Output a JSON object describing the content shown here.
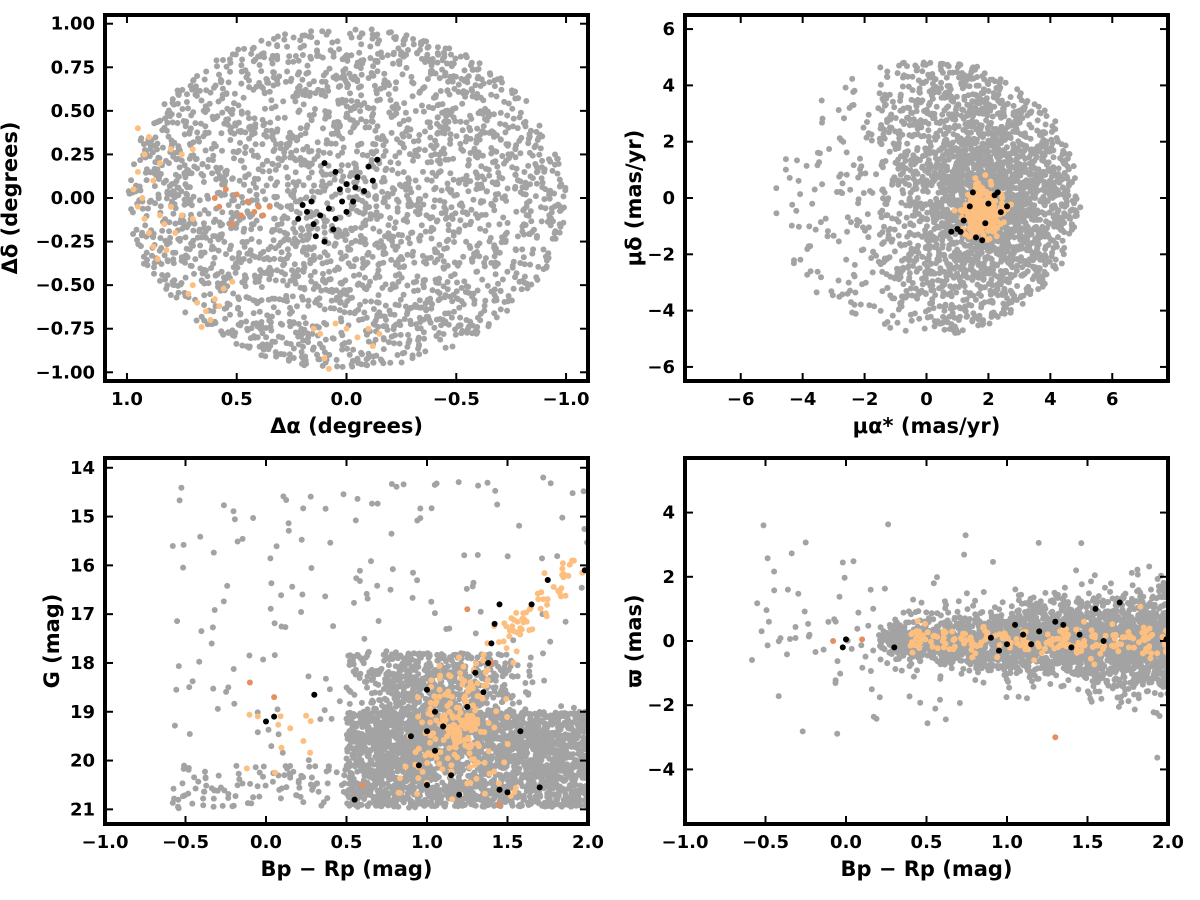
{
  "colors": {
    "field": "#a3a3a3",
    "member_light": "#fdbf7f",
    "member_dark": "#e58f5f",
    "core": "#000000"
  },
  "chart_data": [
    {
      "type": "scatter",
      "panel": "sky-positions",
      "xlabel": "Δα (degrees)",
      "ylabel": "Δδ (degrees)",
      "xlim": [
        1.1,
        -1.1
      ],
      "ylim": [
        -1.05,
        1.05
      ],
      "x_reversed": true,
      "xticks": [
        1.0,
        0.5,
        0.0,
        -0.5,
        -1.0
      ],
      "xtick_labels": [
        "1.0",
        "0.5",
        "0.0",
        "−0.5",
        "−1.0"
      ],
      "yticks": [
        1.0,
        0.75,
        0.5,
        0.25,
        0.0,
        -0.25,
        -0.5,
        -0.75,
        -1.0
      ],
      "ytick_labels": [
        "1.00",
        "0.75",
        "0.50",
        "0.25",
        "0.00",
        "−0.25",
        "−0.50",
        "−0.75",
        "−1.00"
      ],
      "grid": false,
      "series": [
        {
          "color": "#a3a3a3",
          "description": "field stars uniformly filling a circle of radius 1 degree"
        },
        {
          "color": "#fdbf7f",
          "points": [
            [
              0.95,
              0.4
            ],
            [
              0.9,
              0.35
            ],
            [
              0.92,
              0.25
            ],
            [
              0.95,
              0.15
            ],
            [
              0.97,
              0.05
            ],
            [
              0.95,
              -0.05
            ],
            [
              0.92,
              -0.12
            ],
            [
              0.9,
              -0.2
            ],
            [
              0.88,
              -0.28
            ],
            [
              0.86,
              -0.35
            ],
            [
              0.85,
              -0.1
            ],
            [
              0.83,
              -0.15
            ],
            [
              0.8,
              -0.05
            ],
            [
              0.75,
              -0.1
            ],
            [
              0.7,
              -0.12
            ],
            [
              0.88,
              0.1
            ],
            [
              0.85,
              0.2
            ],
            [
              0.8,
              0.28
            ],
            [
              0.75,
              0.25
            ],
            [
              0.7,
              0.28
            ],
            [
              0.93,
              0.0
            ],
            [
              0.78,
              -0.2
            ],
            [
              0.82,
              -0.3
            ],
            [
              0.72,
              -0.55
            ],
            [
              0.68,
              -0.6
            ],
            [
              0.64,
              -0.65
            ],
            [
              0.6,
              -0.58
            ],
            [
              0.56,
              -0.52
            ],
            [
              0.52,
              -0.48
            ],
            [
              0.62,
              -0.7
            ],
            [
              0.66,
              -0.74
            ],
            [
              0.7,
              -0.5
            ],
            [
              0.58,
              -0.62
            ],
            [
              0.05,
              -0.72
            ],
            [
              0.0,
              -0.75
            ],
            [
              -0.05,
              -0.8
            ],
            [
              -0.1,
              -0.75
            ],
            [
              -0.15,
              -0.78
            ],
            [
              0.12,
              -0.78
            ],
            [
              0.1,
              -0.92
            ],
            [
              0.08,
              -0.98
            ],
            [
              0.15,
              -0.75
            ],
            [
              -0.12,
              -0.85
            ]
          ]
        },
        {
          "color": "#e58f5f",
          "points": [
            [
              0.55,
              0.05
            ],
            [
              0.5,
              0.02
            ],
            [
              0.45,
              -0.02
            ],
            [
              0.42,
              -0.08
            ],
            [
              0.4,
              -0.05
            ],
            [
              0.38,
              -0.1
            ],
            [
              0.35,
              -0.05
            ],
            [
              0.48,
              -0.1
            ],
            [
              0.52,
              -0.15
            ],
            [
              0.58,
              -0.05
            ],
            [
              0.6,
              0.0
            ]
          ]
        },
        {
          "color": "#000000",
          "points": [
            [
              0.1,
              0.2
            ],
            [
              0.05,
              0.15
            ],
            [
              0.0,
              0.08
            ],
            [
              -0.05,
              0.12
            ],
            [
              -0.1,
              0.18
            ],
            [
              -0.12,
              0.1
            ],
            [
              0.02,
              -0.02
            ],
            [
              0.08,
              -0.06
            ],
            [
              0.12,
              -0.1
            ],
            [
              0.15,
              -0.15
            ],
            [
              0.18,
              -0.08
            ],
            [
              0.2,
              -0.04
            ],
            [
              0.05,
              -0.12
            ],
            [
              0.0,
              -0.08
            ],
            [
              -0.03,
              -0.02
            ],
            [
              -0.08,
              0.04
            ],
            [
              0.14,
              -0.22
            ],
            [
              0.1,
              -0.25
            ],
            [
              0.06,
              -0.18
            ],
            [
              0.22,
              -0.12
            ],
            [
              -0.04,
              0.06
            ],
            [
              -0.14,
              0.22
            ],
            [
              0.16,
              -0.02
            ],
            [
              0.03,
              0.05
            ]
          ]
        }
      ]
    },
    {
      "type": "scatter",
      "panel": "proper-motions",
      "xlabel": "μα* (mas/yr)",
      "ylabel": "μδ (mas/yr)",
      "xlim": [
        -7.8,
        7.8
      ],
      "ylim": [
        -6.5,
        6.5
      ],
      "xticks": [
        -6,
        -4,
        -2,
        0,
        2,
        4,
        6
      ],
      "xtick_labels": [
        "−6",
        "−4",
        "−2",
        "0",
        "2",
        "4",
        "6"
      ],
      "yticks": [
        6,
        4,
        2,
        0,
        -2,
        -4,
        -6
      ],
      "ytick_labels": [
        "6",
        "4",
        "2",
        "0",
        "−2",
        "−4",
        "−6"
      ],
      "grid": false,
      "series": [
        {
          "color": "#a3a3a3",
          "description": "field stars within a circle of radius 5 mas/yr centred on (0, 0), dense near (2, 0)"
        },
        {
          "color": "#fdbf7f",
          "description": "cluster members concentrated around (1.8, -0.5)"
        },
        {
          "color": "#000000",
          "points": [
            [
              1.0,
              -1.1
            ],
            [
              1.2,
              -0.8
            ],
            [
              1.4,
              -0.3
            ],
            [
              1.6,
              -1.4
            ],
            [
              1.8,
              -1.5
            ],
            [
              2.0,
              -0.2
            ],
            [
              2.2,
              0.1
            ],
            [
              2.4,
              -0.5
            ],
            [
              1.1,
              -1.2
            ],
            [
              1.5,
              0.2
            ],
            [
              2.6,
              -0.3
            ],
            [
              0.8,
              -1.2
            ],
            [
              1.9,
              -0.9
            ],
            [
              2.3,
              0.2
            ]
          ]
        }
      ]
    },
    {
      "type": "scatter",
      "panel": "colour-magnitude",
      "xlabel": "Bp − Rp (mag)",
      "ylabel": "G (mag)",
      "xlim": [
        -1.0,
        2.0
      ],
      "ylim": [
        21.3,
        13.8
      ],
      "y_reversed": true,
      "xticks": [
        -1.0,
        -0.5,
        0.0,
        0.5,
        1.0,
        1.5,
        2.0
      ],
      "xtick_labels": [
        "−1.0",
        "−0.5",
        "0.0",
        "0.5",
        "1.0",
        "1.5",
        "2.0"
      ],
      "yticks": [
        21,
        20,
        19,
        18,
        17,
        16,
        15,
        14
      ],
      "ytick_labels": [
        "21",
        "20",
        "19",
        "18",
        "17",
        "16",
        "15",
        "14"
      ],
      "grid": false,
      "series": [
        {
          "color": "#a3a3a3",
          "description": "field stars, dense band at G 19–21 for colour 0.5–2.0, sparse scatter elsewhere"
        },
        {
          "color": "#fdbf7f",
          "description": "members clustered near colour 1.2, G 19.1, with a sequence down to G 16"
        },
        {
          "color": "#e58f5f",
          "points": [
            [
              0.05,
              18.7
            ],
            [
              -0.1,
              18.4
            ],
            [
              1.25,
              16.9
            ],
            [
              1.45,
              20.9
            ],
            [
              1.4,
              18.0
            ],
            [
              0.6,
              20.5
            ]
          ]
        },
        {
          "color": "#000000",
          "points": [
            [
              0.55,
              20.8
            ],
            [
              0.95,
              20.1
            ],
            [
              1.0,
              20.5
            ],
            [
              1.05,
              19.8
            ],
            [
              1.15,
              20.3
            ],
            [
              1.2,
              20.7
            ],
            [
              1.45,
              20.6
            ],
            [
              1.5,
              20.65
            ],
            [
              1.58,
              19.4
            ],
            [
              1.7,
              20.55
            ],
            [
              0.9,
              19.5
            ],
            [
              1.0,
              19.4
            ],
            [
              1.05,
              19.0
            ],
            [
              1.1,
              19.3
            ],
            [
              1.25,
              18.9
            ],
            [
              1.35,
              18.6
            ],
            [
              1.38,
              18.0
            ],
            [
              1.4,
              17.6
            ],
            [
              1.42,
              17.2
            ],
            [
              1.45,
              16.8
            ],
            [
              1.65,
              16.8
            ],
            [
              1.75,
              16.3
            ],
            [
              1.98,
              16.1
            ],
            [
              0.0,
              19.2
            ],
            [
              0.05,
              19.1
            ],
            [
              0.3,
              18.65
            ],
            [
              1.0,
              18.55
            ],
            [
              1.3,
              18.2
            ]
          ]
        }
      ]
    },
    {
      "type": "scatter",
      "panel": "parallax-colour",
      "xlabel": "Bp − Rp (mag)",
      "ylabel": "ϖ (mas)",
      "xlim": [
        -1.0,
        2.0
      ],
      "ylim": [
        -5.7,
        5.7
      ],
      "xticks": [
        -1.0,
        -0.5,
        0.0,
        0.5,
        1.0,
        1.5,
        2.0
      ],
      "xtick_labels": [
        "−1.0",
        "−0.5",
        "0.0",
        "0.5",
        "1.0",
        "1.5",
        "2.0"
      ],
      "yticks": [
        4,
        2,
        0,
        -2,
        -4
      ],
      "ytick_labels": [
        "4",
        "2",
        "0",
        "−2",
        "−4"
      ],
      "grid": false,
      "series": [
        {
          "color": "#a3a3a3",
          "description": "field stars spread around parallax 0, widening toward red colours"
        },
        {
          "color": "#fdbf7f",
          "description": "members near parallax 0 for colour 0.4–2.0"
        },
        {
          "color": "#e58f5f",
          "points": [
            [
              -0.08,
              0.0
            ],
            [
              0.1,
              0.05
            ],
            [
              1.3,
              -3.0
            ],
            [
              1.2,
              0.3
            ]
          ]
        },
        {
          "color": "#000000",
          "points": [
            [
              -0.02,
              -0.2
            ],
            [
              0.0,
              0.05
            ],
            [
              0.3,
              -0.2
            ],
            [
              0.9,
              0.1
            ],
            [
              1.0,
              -0.1
            ],
            [
              1.05,
              0.5
            ],
            [
              1.1,
              0.2
            ],
            [
              1.2,
              0.3
            ],
            [
              1.3,
              0.6
            ],
            [
              1.4,
              -0.2
            ],
            [
              1.45,
              0.2
            ],
            [
              1.55,
              1.0
            ],
            [
              1.7,
              1.2
            ],
            [
              1.99,
              0.05
            ],
            [
              1.6,
              0.0
            ],
            [
              0.95,
              -0.3
            ],
            [
              1.15,
              -0.1
            ],
            [
              1.35,
              0.5
            ]
          ]
        }
      ]
    }
  ]
}
